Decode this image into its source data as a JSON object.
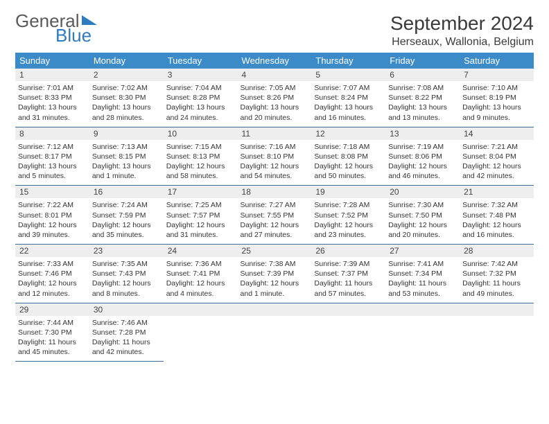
{
  "logo": {
    "general": "General",
    "blue": "Blue"
  },
  "title": "September 2024",
  "subtitle": "Herseaux, Wallonia, Belgium",
  "colors": {
    "header_bg": "#3b8bc8",
    "header_text": "#ffffff",
    "daynum_bg": "#eeeeee",
    "border": "#3b6d9c",
    "logo_blue": "#2f7bbf",
    "text": "#333333"
  },
  "fonts": {
    "title_size": 28,
    "subtitle_size": 16,
    "header_size": 13,
    "cell_size": 10.5,
    "daynum_size": 12
  },
  "weekdays": [
    "Sunday",
    "Monday",
    "Tuesday",
    "Wednesday",
    "Thursday",
    "Friday",
    "Saturday"
  ],
  "days": {
    "1": {
      "sunrise": "7:01 AM",
      "sunset": "8:33 PM",
      "daylight": "13 hours and 31 minutes."
    },
    "2": {
      "sunrise": "7:02 AM",
      "sunset": "8:30 PM",
      "daylight": "13 hours and 28 minutes."
    },
    "3": {
      "sunrise": "7:04 AM",
      "sunset": "8:28 PM",
      "daylight": "13 hours and 24 minutes."
    },
    "4": {
      "sunrise": "7:05 AM",
      "sunset": "8:26 PM",
      "daylight": "13 hours and 20 minutes."
    },
    "5": {
      "sunrise": "7:07 AM",
      "sunset": "8:24 PM",
      "daylight": "13 hours and 16 minutes."
    },
    "6": {
      "sunrise": "7:08 AM",
      "sunset": "8:22 PM",
      "daylight": "13 hours and 13 minutes."
    },
    "7": {
      "sunrise": "7:10 AM",
      "sunset": "8:19 PM",
      "daylight": "13 hours and 9 minutes."
    },
    "8": {
      "sunrise": "7:12 AM",
      "sunset": "8:17 PM",
      "daylight": "13 hours and 5 minutes."
    },
    "9": {
      "sunrise": "7:13 AM",
      "sunset": "8:15 PM",
      "daylight": "13 hours and 1 minute."
    },
    "10": {
      "sunrise": "7:15 AM",
      "sunset": "8:13 PM",
      "daylight": "12 hours and 58 minutes."
    },
    "11": {
      "sunrise": "7:16 AM",
      "sunset": "8:10 PM",
      "daylight": "12 hours and 54 minutes."
    },
    "12": {
      "sunrise": "7:18 AM",
      "sunset": "8:08 PM",
      "daylight": "12 hours and 50 minutes."
    },
    "13": {
      "sunrise": "7:19 AM",
      "sunset": "8:06 PM",
      "daylight": "12 hours and 46 minutes."
    },
    "14": {
      "sunrise": "7:21 AM",
      "sunset": "8:04 PM",
      "daylight": "12 hours and 42 minutes."
    },
    "15": {
      "sunrise": "7:22 AM",
      "sunset": "8:01 PM",
      "daylight": "12 hours and 39 minutes."
    },
    "16": {
      "sunrise": "7:24 AM",
      "sunset": "7:59 PM",
      "daylight": "12 hours and 35 minutes."
    },
    "17": {
      "sunrise": "7:25 AM",
      "sunset": "7:57 PM",
      "daylight": "12 hours and 31 minutes."
    },
    "18": {
      "sunrise": "7:27 AM",
      "sunset": "7:55 PM",
      "daylight": "12 hours and 27 minutes."
    },
    "19": {
      "sunrise": "7:28 AM",
      "sunset": "7:52 PM",
      "daylight": "12 hours and 23 minutes."
    },
    "20": {
      "sunrise": "7:30 AM",
      "sunset": "7:50 PM",
      "daylight": "12 hours and 20 minutes."
    },
    "21": {
      "sunrise": "7:32 AM",
      "sunset": "7:48 PM",
      "daylight": "12 hours and 16 minutes."
    },
    "22": {
      "sunrise": "7:33 AM",
      "sunset": "7:46 PM",
      "daylight": "12 hours and 12 minutes."
    },
    "23": {
      "sunrise": "7:35 AM",
      "sunset": "7:43 PM",
      "daylight": "12 hours and 8 minutes."
    },
    "24": {
      "sunrise": "7:36 AM",
      "sunset": "7:41 PM",
      "daylight": "12 hours and 4 minutes."
    },
    "25": {
      "sunrise": "7:38 AM",
      "sunset": "7:39 PM",
      "daylight": "12 hours and 1 minute."
    },
    "26": {
      "sunrise": "7:39 AM",
      "sunset": "7:37 PM",
      "daylight": "11 hours and 57 minutes."
    },
    "27": {
      "sunrise": "7:41 AM",
      "sunset": "7:34 PM",
      "daylight": "11 hours and 53 minutes."
    },
    "28": {
      "sunrise": "7:42 AM",
      "sunset": "7:32 PM",
      "daylight": "11 hours and 49 minutes."
    },
    "29": {
      "sunrise": "7:44 AM",
      "sunset": "7:30 PM",
      "daylight": "11 hours and 45 minutes."
    },
    "30": {
      "sunrise": "7:46 AM",
      "sunset": "7:28 PM",
      "daylight": "11 hours and 42 minutes."
    }
  },
  "labels": {
    "sunrise": "Sunrise: ",
    "sunset": "Sunset: ",
    "daylight": "Daylight: "
  },
  "grid": {
    "cols": 7,
    "weeks": [
      [
        1,
        2,
        3,
        4,
        5,
        6,
        7
      ],
      [
        8,
        9,
        10,
        11,
        12,
        13,
        14
      ],
      [
        15,
        16,
        17,
        18,
        19,
        20,
        21
      ],
      [
        22,
        23,
        24,
        25,
        26,
        27,
        28
      ],
      [
        29,
        30,
        null,
        null,
        null,
        null,
        null
      ]
    ]
  }
}
